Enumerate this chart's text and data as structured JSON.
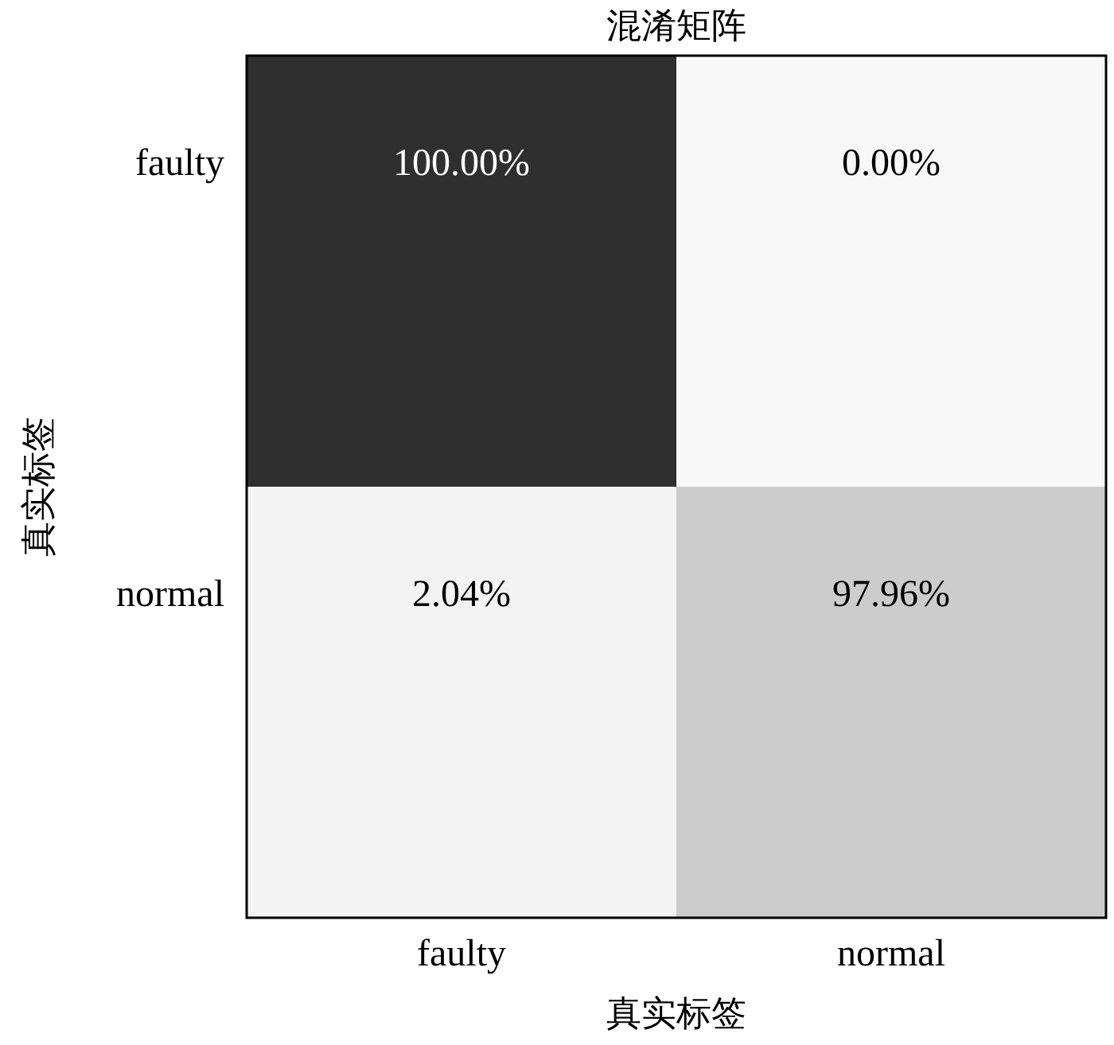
{
  "chart_data": {
    "type": "heatmap",
    "title": "混淆矩阵",
    "xlabel": "真实标签",
    "ylabel": "真实标签",
    "categories": [
      "faulty",
      "normal"
    ],
    "y_categories": [
      "faulty",
      "normal"
    ],
    "cells": [
      [
        100.0,
        0.0
      ],
      [
        2.04,
        97.96
      ]
    ],
    "cell_labels": [
      [
        "100.00%",
        "0.00%"
      ],
      [
        "2.04%",
        "97.96%"
      ]
    ],
    "colors": [
      [
        "#2f2f2f",
        "#f8f8f8"
      ],
      [
        "#f3f3f3",
        "#cccccc"
      ]
    ]
  }
}
